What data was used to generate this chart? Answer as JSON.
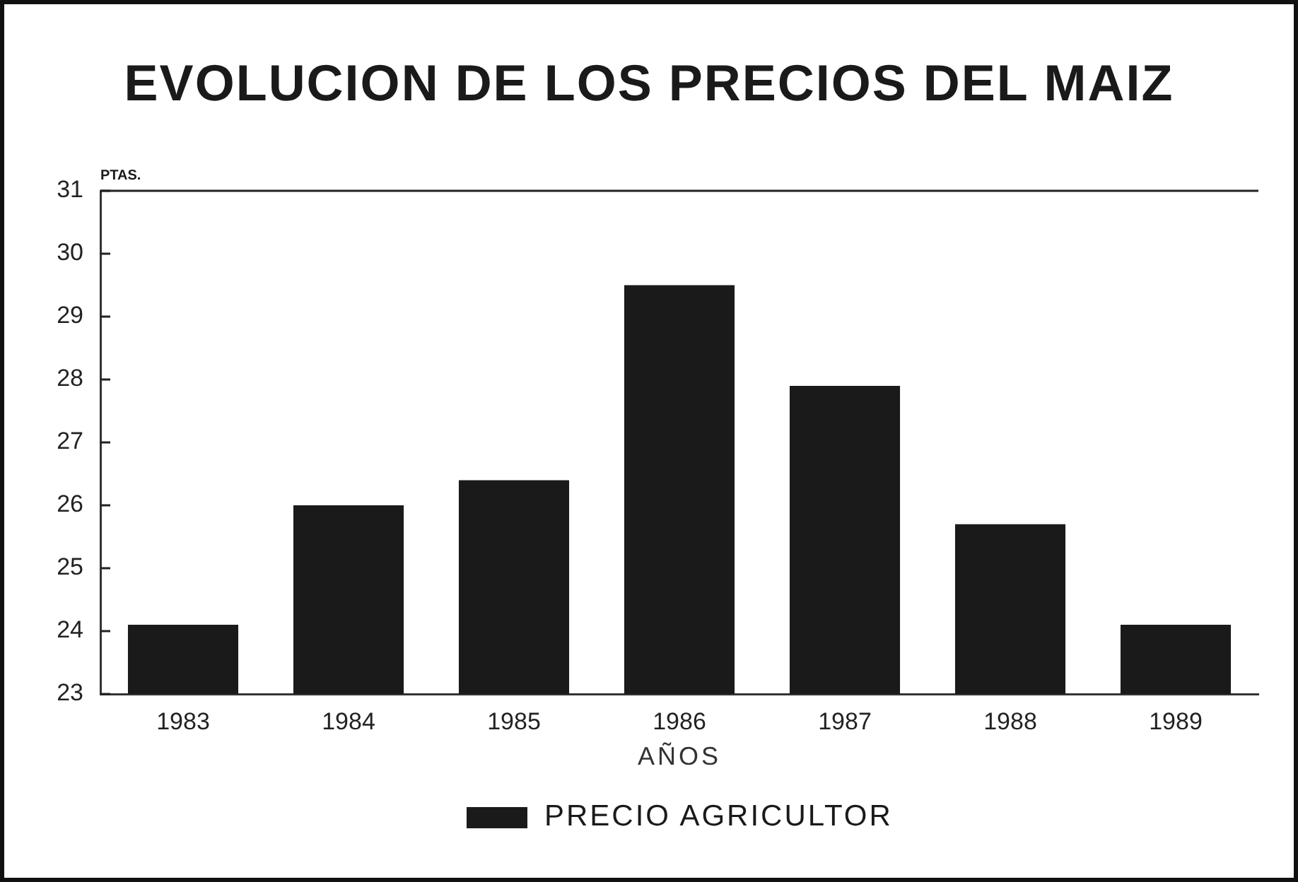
{
  "chart_data": {
    "type": "bar",
    "title": "EVOLUCION DE LOS PRECIOS DEL MAIZ",
    "xlabel": "AÑOS",
    "ylabel": "PTAS.",
    "categories": [
      "1983",
      "1984",
      "1985",
      "1986",
      "1987",
      "1988",
      "1989"
    ],
    "series": [
      {
        "name": "PRECIO AGRICULTOR",
        "color": "#1a1a1a",
        "values": [
          24.1,
          26.0,
          26.4,
          29.5,
          27.9,
          25.7,
          24.1
        ]
      }
    ],
    "ylim": [
      23,
      31
    ],
    "yticks": [
      23,
      24,
      25,
      26,
      27,
      28,
      29,
      30,
      31
    ],
    "legend": "bottom"
  }
}
